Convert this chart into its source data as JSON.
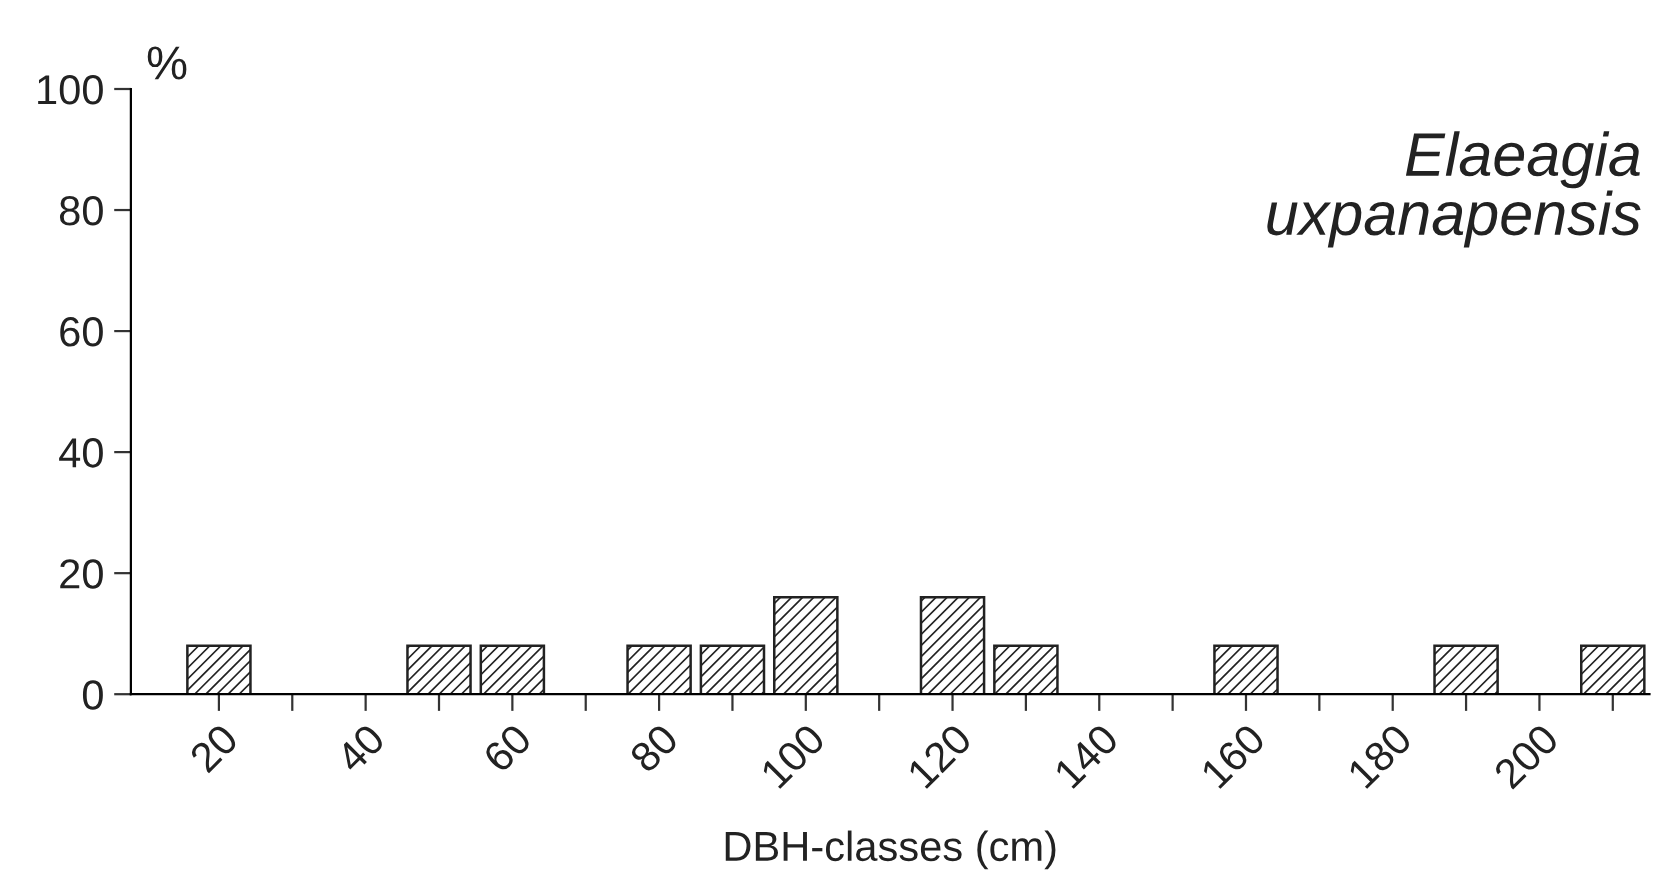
{
  "chart_data": {
    "type": "bar",
    "title": "Elaeagia\nuxpanapensis",
    "xlabel": "DBH-classes (cm)",
    "ylabel": "%",
    "x": [
      20,
      50,
      60,
      80,
      90,
      100,
      120,
      130,
      160,
      190,
      210
    ],
    "values": [
      8,
      8,
      8,
      8,
      8,
      16,
      16,
      8,
      8,
      8,
      8
    ],
    "color": "#222222",
    "xlim": [
      8,
      215
    ],
    "xticks": [
      20,
      {
        "value": 30,
        "label": null
      },
      40,
      {
        "value": 50,
        "label": null
      },
      60,
      {
        "value": 70,
        "label": null
      },
      80,
      {
        "value": 90,
        "label": null
      },
      100,
      {
        "value": 110,
        "label": null
      },
      120,
      {
        "value": 130,
        "label": null
      },
      140,
      {
        "value": 150,
        "label": null
      },
      160,
      {
        "value": 170,
        "label": null
      },
      180,
      {
        "value": 190,
        "label": null
      },
      200,
      {
        "value": 210,
        "label": null
      }
    ],
    "ylim": [
      0,
      100
    ],
    "yticks": [
      0,
      20,
      40,
      60,
      80,
      100
    ],
    "grid": false,
    "legend": false
  }
}
